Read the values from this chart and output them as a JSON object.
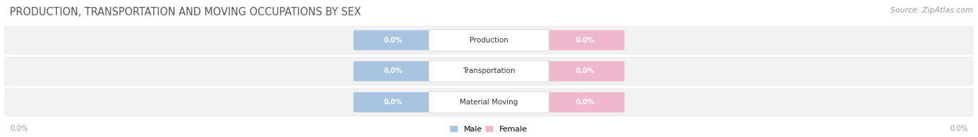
{
  "title": "PRODUCTION, TRANSPORTATION AND MOVING OCCUPATIONS BY SEX",
  "source": "Source: ZipAtlas.com",
  "categories": [
    "Production",
    "Transportation",
    "Material Moving"
  ],
  "male_values": [
    0.0,
    0.0,
    0.0
  ],
  "female_values": [
    0.0,
    0.0,
    0.0
  ],
  "male_color": "#a8c4e0",
  "female_color": "#f0b8cc",
  "bar_bg_color": "#f2f2f2",
  "bar_bg_edge": "#e0e0e0",
  "center_box_color": "#ffffff",
  "center_box_edge": "#cccccc",
  "title_fontsize": 10.5,
  "source_fontsize": 8,
  "tick_label": "0.0%",
  "background_color": "#ffffff",
  "legend_male_color": "#a8c4e0",
  "legend_female_color": "#f0b8cc",
  "bar_row_bg": "#f5f5f5",
  "bar_row_edge": "#e8e8e8"
}
